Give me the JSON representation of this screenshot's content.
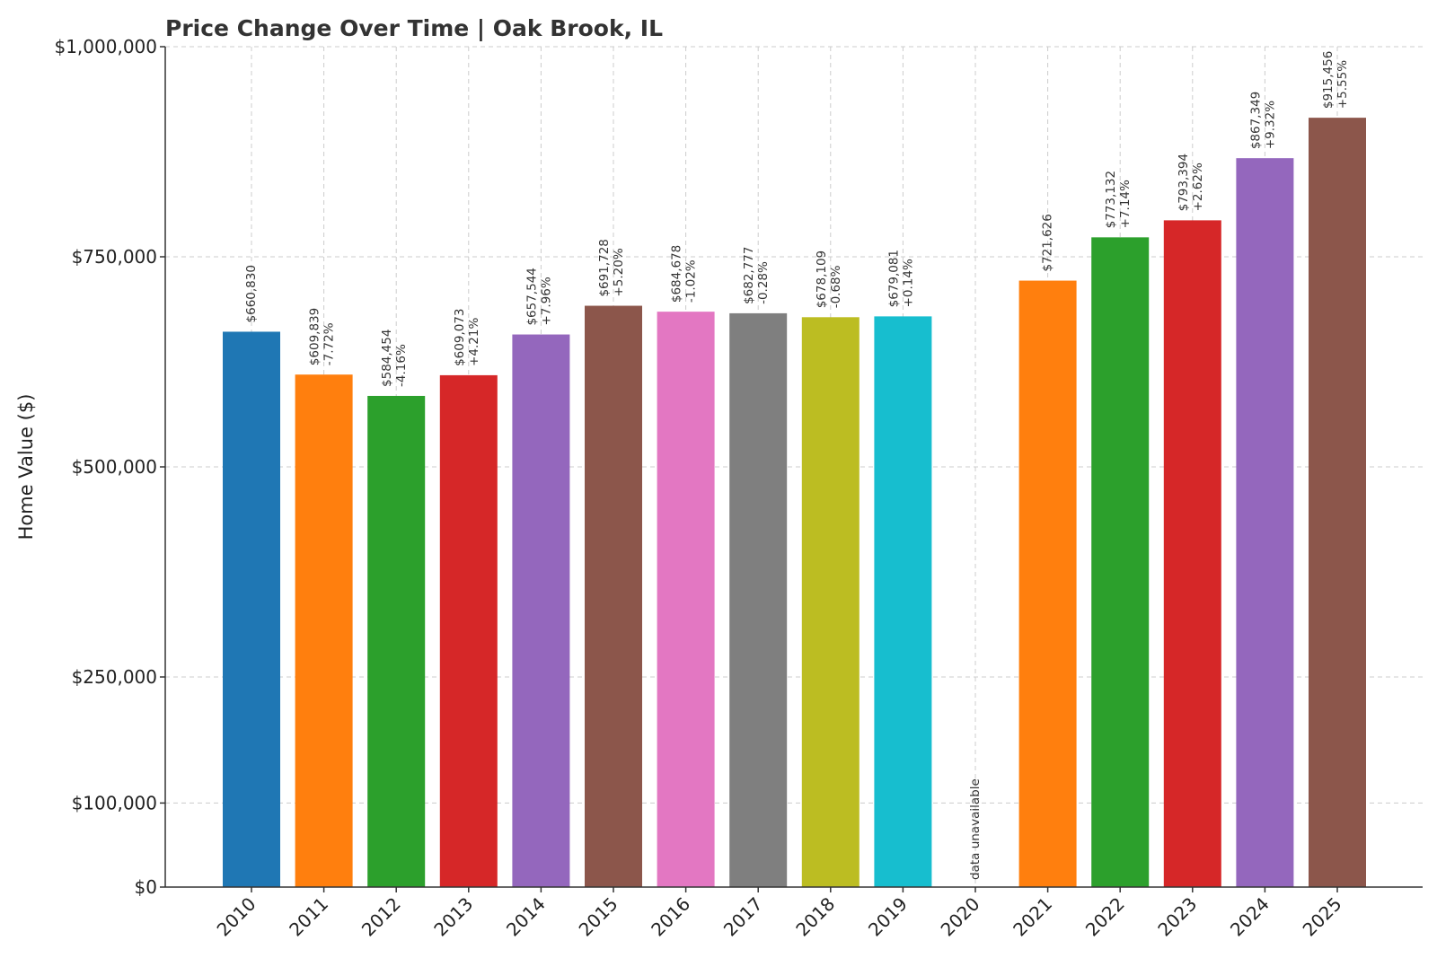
{
  "chart_data": {
    "type": "bar",
    "title": "Price Change Over Time | Oak Brook, IL",
    "xlabel": "",
    "ylabel": "Home Value ($)",
    "ylim": [
      0,
      1000000
    ],
    "yticks": [
      0,
      100000,
      250000,
      500000,
      750000,
      1000000
    ],
    "ytick_labels": [
      "$0",
      "$100,000",
      "$250,000",
      "$500,000",
      "$750,000",
      "$1,000,000"
    ],
    "grid": true,
    "categories": [
      "2010",
      "2011",
      "2012",
      "2013",
      "2014",
      "2015",
      "2016",
      "2017",
      "2018",
      "2019",
      "2020",
      "2021",
      "2022",
      "2023",
      "2024",
      "2025"
    ],
    "values": [
      660830,
      609839,
      584454,
      609073,
      657544,
      691728,
      684678,
      682777,
      678109,
      679081,
      null,
      721626,
      773132,
      793394,
      867349,
      915456
    ],
    "value_labels": [
      "$660,830",
      "$609,839",
      "$584,454",
      "$609,073",
      "$657,544",
      "$691,728",
      "$684,678",
      "$682,777",
      "$678,109",
      "$679,081",
      "",
      "$721,626",
      "$773,132",
      "$793,394",
      "$867,349",
      "$915,456"
    ],
    "change_labels": [
      "",
      "-7.72%",
      "-4.16%",
      "+4.21%",
      "+7.96%",
      "+5.20%",
      "-1.02%",
      "-0.28%",
      "-0.68%",
      "+0.14%",
      "",
      "",
      "+7.14%",
      "+2.62%",
      "+9.32%",
      "+5.55%"
    ],
    "missing_label": "data unavailable",
    "colors": [
      "#1f77b4",
      "#ff7f0e",
      "#2ca02c",
      "#d62728",
      "#9467bd",
      "#8c564b",
      "#e377c2",
      "#7f7f7f",
      "#bcbd22",
      "#17becf",
      "#1f77b4",
      "#ff7f0e",
      "#2ca02c",
      "#d62728",
      "#9467bd",
      "#8c564b"
    ]
  }
}
